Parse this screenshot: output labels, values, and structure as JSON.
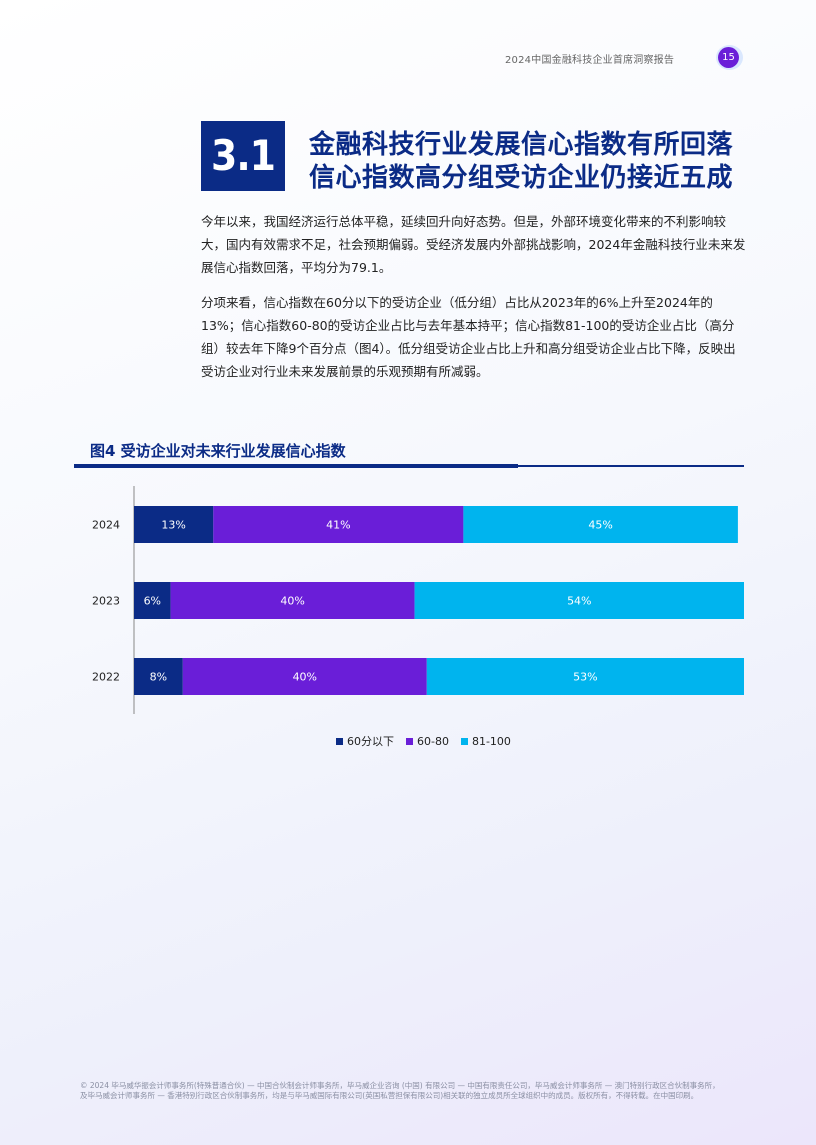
{
  "header": {
    "report_title": "2024中国金融科技企业首席洞察报告",
    "page_number": "15"
  },
  "section": {
    "number": "3.1",
    "headline_line1": "金融科技行业发展信心指数有所回落",
    "headline_line2": "信心指数高分组受访企业仍接近五成"
  },
  "body": {
    "paragraph1": "今年以来，我国经济运行总体平稳，延续回升向好态势。但是，外部环境变化带来的不利影响较大，国内有效需求不足，社会预期偏弱。受经济发展内外部挑战影响，2024年金融科技行业未来发展信心指数回落，平均分为79.1。",
    "paragraph2": "分项来看，信心指数在60分以下的受访企业（低分组）占比从2023年的6%上升至2024年的13%；信心指数60-80的受访企业占比与去年基本持平；信心指数81-100的受访企业占比（高分组）较去年下降9个百分点（图4）。低分组受访企业占比上升和高分组受访企业占比下降，反映出受访企业对行业未来发展前景的乐观预期有所减弱。"
  },
  "figure": {
    "title": "图4 受访企业对未来行业发展信心指数"
  },
  "chart_data": {
    "type": "bar",
    "orientation": "horizontal",
    "stacked": true,
    "categories": [
      "2024",
      "2023",
      "2022"
    ],
    "series": [
      {
        "name": "60分以下",
        "color": "#0b2b86",
        "values": [
          13,
          6,
          8
        ],
        "labels": [
          "13%",
          "6%",
          "8%"
        ]
      },
      {
        "name": "60-80",
        "color": "#6a1ed8",
        "values": [
          41,
          40,
          40
        ],
        "labels": [
          "41%",
          "40%",
          "40%"
        ]
      },
      {
        "name": "81-100",
        "color": "#00b4ee",
        "values": [
          45,
          54,
          53
        ],
        "labels": [
          "45%",
          "54%",
          "53%"
        ]
      }
    ],
    "xlim": [
      0,
      100
    ],
    "grid": false,
    "legend_position": "bottom"
  },
  "footer": {
    "copyright": "© 2024 毕马威华振会计师事务所(特殊普通合伙) — 中国合伙制会计师事务所，毕马威企业咨询 (中国) 有限公司 — 中国有限责任公司，毕马威会计师事务所 — 澳门特别行政区合伙制事务所，及毕马威会计师事务所 — 香港特别行政区合伙制事务所，均是与毕马威国际有限公司(英国私营担保有限公司)相关联的独立成员所全球组织中的成员。版权所有，不得转载。在中国印刷。"
  }
}
